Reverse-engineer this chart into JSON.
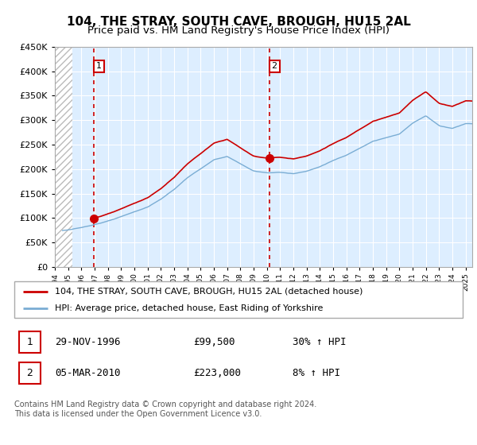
{
  "title": "104, THE STRAY, SOUTH CAVE, BROUGH, HU15 2AL",
  "subtitle": "Price paid vs. HM Land Registry's House Price Index (HPI)",
  "ylim": [
    0,
    450000
  ],
  "yticks": [
    0,
    50000,
    100000,
    150000,
    200000,
    250000,
    300000,
    350000,
    400000,
    450000
  ],
  "xlim_start": 1994.0,
  "xlim_end": 2025.5,
  "sale1_date": 1996.92,
  "sale1_price": 99500,
  "sale2_date": 2010.17,
  "sale2_price": 223000,
  "legend_line1": "104, THE STRAY, SOUTH CAVE, BROUGH, HU15 2AL (detached house)",
  "legend_line2": "HPI: Average price, detached house, East Riding of Yorkshire",
  "table_row1_date": "29-NOV-1996",
  "table_row1_price": "£99,500",
  "table_row1_hpi": "30% ↑ HPI",
  "table_row2_date": "05-MAR-2010",
  "table_row2_price": "£223,000",
  "table_row2_hpi": "8% ↑ HPI",
  "footnote": "Contains HM Land Registry data © Crown copyright and database right 2024.\nThis data is licensed under the Open Government Licence v3.0.",
  "red_color": "#cc0000",
  "blue_color": "#7aadd4",
  "chart_bg": "#ddeeff",
  "hatch_color": "#bbbbbb",
  "grid_color": "#ffffff",
  "title_fontsize": 11,
  "subtitle_fontsize": 9.5,
  "hpi_key_years": [
    1994,
    1995,
    1996,
    1997,
    1998,
    1999,
    2000,
    2001,
    2002,
    2003,
    2004,
    2005,
    2006,
    2007,
    2008,
    2009,
    2010,
    2011,
    2012,
    2013,
    2014,
    2015,
    2016,
    2017,
    2018,
    2019,
    2020,
    2021,
    2022,
    2023,
    2024,
    2025
  ],
  "hpi_key_values": [
    73000,
    76000,
    80000,
    87000,
    94000,
    102000,
    112000,
    122000,
    138000,
    158000,
    182000,
    200000,
    218000,
    225000,
    210000,
    195000,
    192000,
    193000,
    190000,
    196000,
    205000,
    218000,
    228000,
    243000,
    258000,
    265000,
    272000,
    295000,
    310000,
    290000,
    285000,
    295000
  ]
}
